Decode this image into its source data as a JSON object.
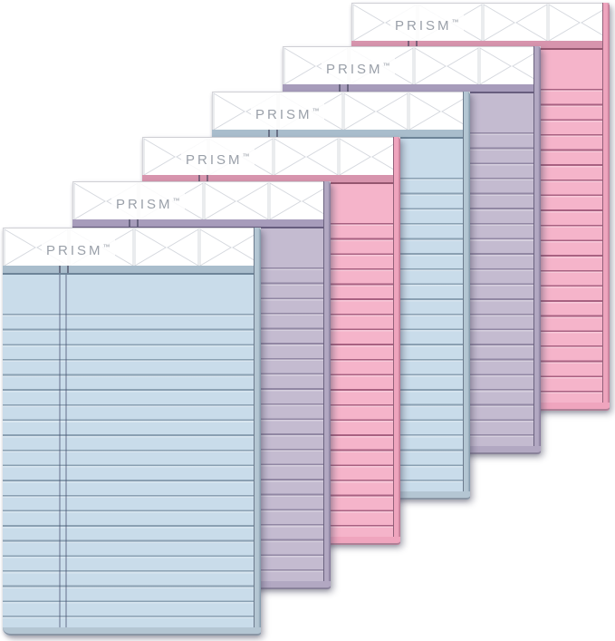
{
  "scene": {
    "type": "product-photo",
    "background": "#ffffff",
    "description": "Six pastel PRISM writing pads stacked in an overlapping diagonal cascade on a white background"
  },
  "brand": {
    "wordmark": "PRISM",
    "trademark": "™",
    "color": "#9aa0a9"
  },
  "pattern": {
    "name": "prism-triangle-pattern",
    "stroke": "#d5d8de"
  },
  "pads": [
    {
      "color_name": "pink",
      "body": "#f5b4ca",
      "line": "#a86181",
      "binding": "#d794ad",
      "binding_edge": "#95566f",
      "edge": "#efa5be",
      "edge_dark": "#b5718c"
    },
    {
      "color_name": "orchid",
      "body": "#c4bbd0",
      "line": "#9187a3",
      "binding": "#a79cbb",
      "binding_edge": "#675d7e",
      "edge": "#b2a8c2",
      "edge_dark": "#7e7394"
    },
    {
      "color_name": "blue",
      "body": "#c9dcea",
      "line": "#8aa0b2",
      "binding": "#a9bdcc",
      "binding_edge": "#6d8498",
      "edge": "#b4c6d3",
      "edge_dark": "#7f95a7"
    },
    {
      "color_name": "pink",
      "body": "#f5b4ca",
      "line": "#a86181",
      "binding": "#d794ad",
      "binding_edge": "#95566f",
      "edge": "#efa5be",
      "edge_dark": "#b5718c"
    },
    {
      "color_name": "orchid",
      "body": "#c4bbd0",
      "line": "#9187a3",
      "binding": "#a79cbb",
      "binding_edge": "#675d7e",
      "edge": "#b2a8c2",
      "edge_dark": "#7e7394"
    },
    {
      "color_name": "blue",
      "body": "#c9dcea",
      "line": "#8aa0b2",
      "binding": "#a9bdcc",
      "binding_edge": "#6d8498",
      "edge": "#b4c6d3",
      "edge_dark": "#7f95a7"
    }
  ]
}
